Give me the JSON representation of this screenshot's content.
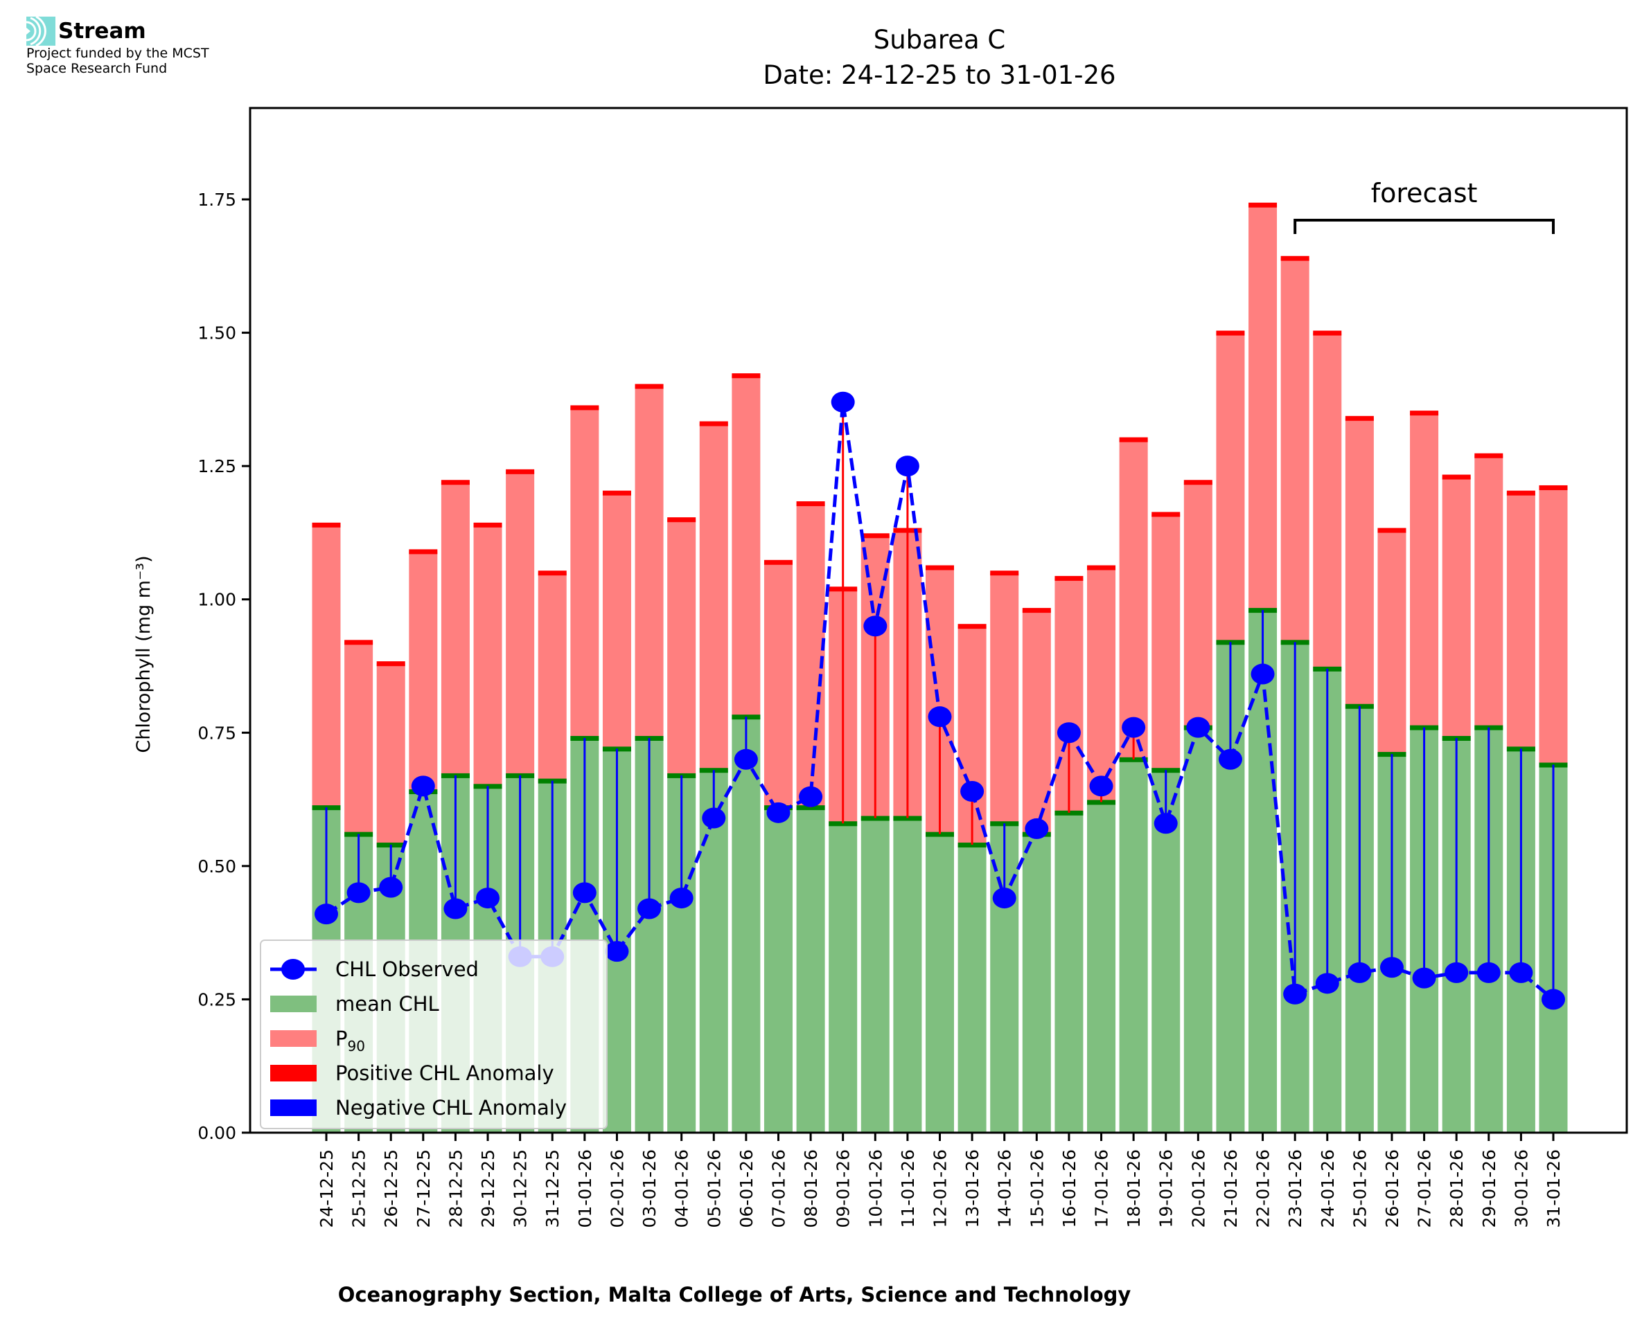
{
  "logo": {
    "name": "Stream",
    "line1": "Project funded by the MCST",
    "line2": "Space Research Fund",
    "accent": "#7fdcd8"
  },
  "chart_data": {
    "type": "bar",
    "title": "Subarea C",
    "subtitle": "Date: 24-12-25 to 31-01-26",
    "xlabel": "Oceanography Section, Malta College of Arts, Science and Technology",
    "ylabel": "Chlorophyll (mg m⁻³)",
    "ylim": [
      0,
      1.92
    ],
    "yticks": [
      "0.00",
      "0.25",
      "0.50",
      "0.75",
      "1.00",
      "1.25",
      "1.50",
      "1.75"
    ],
    "ytick_values": [
      0,
      0.25,
      0.5,
      0.75,
      1.0,
      1.25,
      1.5,
      1.75
    ],
    "grid": false,
    "legend_position": "lower-left",
    "legend": [
      {
        "label": "CHL Observed",
        "kind": "line-marker",
        "color": "#0000ff"
      },
      {
        "label": "mean CHL",
        "kind": "patch",
        "color": "#7fbf7f"
      },
      {
        "label": "P",
        "sub": "90",
        "kind": "patch",
        "color": "#ff7f7f"
      },
      {
        "label": "Positive CHL Anomaly",
        "kind": "patch",
        "color": "#ff0000"
      },
      {
        "label": "Negative CHL Anomaly",
        "kind": "patch",
        "color": "#0000ff"
      }
    ],
    "annotation": {
      "text": "forecast",
      "from": "23-01-26",
      "to": "31-01-26"
    },
    "colors": {
      "mean": "#7fbf7f",
      "mean_edge": "#008000",
      "p90": "#ff7f7f",
      "p90_edge": "#ff0000",
      "positive": "#ff0000",
      "negative": "#0000ff",
      "observed": "#0000ff"
    },
    "categories": [
      "24-12-25",
      "25-12-25",
      "26-12-25",
      "27-12-25",
      "28-12-25",
      "29-12-25",
      "30-12-25",
      "31-12-25",
      "01-01-26",
      "02-01-26",
      "03-01-26",
      "04-01-26",
      "05-01-26",
      "06-01-26",
      "07-01-26",
      "08-01-26",
      "09-01-26",
      "10-01-26",
      "11-01-26",
      "12-01-26",
      "13-01-26",
      "14-01-26",
      "15-01-26",
      "16-01-26",
      "17-01-26",
      "18-01-26",
      "19-01-26",
      "20-01-26",
      "21-01-26",
      "22-01-26",
      "23-01-26",
      "24-01-26",
      "25-01-26",
      "26-01-26",
      "27-01-26",
      "28-01-26",
      "29-01-26",
      "30-01-26",
      "31-01-26"
    ],
    "series": [
      {
        "name": "mean CHL",
        "values": [
          0.61,
          0.56,
          0.54,
          0.64,
          0.67,
          0.65,
          0.67,
          0.66,
          0.74,
          0.72,
          0.74,
          0.67,
          0.68,
          0.78,
          0.61,
          0.61,
          0.58,
          0.59,
          0.59,
          0.56,
          0.54,
          0.58,
          0.56,
          0.6,
          0.62,
          0.7,
          0.68,
          0.76,
          0.92,
          0.98,
          0.92,
          0.87,
          0.8,
          0.71,
          0.76,
          0.74,
          0.76,
          0.72,
          0.69
        ]
      },
      {
        "name": "P90",
        "values": [
          1.14,
          0.92,
          0.88,
          1.09,
          1.22,
          1.14,
          1.24,
          1.05,
          1.36,
          1.2,
          1.4,
          1.15,
          1.33,
          1.42,
          1.07,
          1.18,
          1.02,
          1.12,
          1.13,
          1.06,
          0.95,
          1.05,
          0.98,
          1.04,
          1.06,
          1.3,
          1.16,
          1.22,
          1.5,
          1.74,
          1.64,
          1.5,
          1.34,
          1.13,
          1.35,
          1.23,
          1.27,
          1.2,
          1.21
        ]
      },
      {
        "name": "CHL Observed",
        "values": [
          0.41,
          0.45,
          0.46,
          0.65,
          0.42,
          0.44,
          0.33,
          0.33,
          0.45,
          0.34,
          0.42,
          0.44,
          0.59,
          0.7,
          0.6,
          0.63,
          1.37,
          0.95,
          1.25,
          0.78,
          0.64,
          0.44,
          0.57,
          0.75,
          0.65,
          0.76,
          0.58,
          0.76,
          0.7,
          0.86,
          0.26,
          0.28,
          0.3,
          0.31,
          0.29,
          0.3,
          0.3,
          0.3,
          0.25
        ]
      }
    ]
  }
}
